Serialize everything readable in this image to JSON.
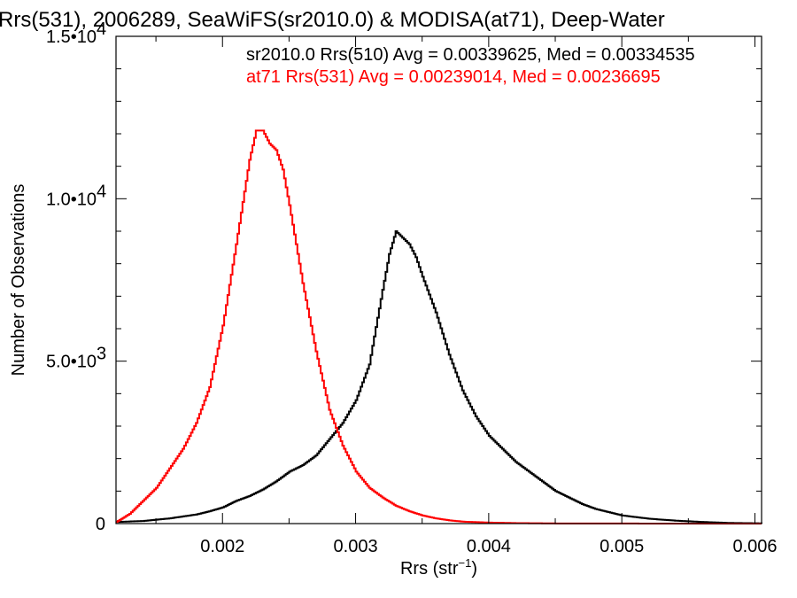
{
  "chart_data": {
    "type": "line",
    "title": "Rrs(531), 2006289, SeaWiFS(sr2010.0) & MODISA(at71), Deep-Water",
    "xlabel": "Rrs (str",
    "xlabel_sup": "−1",
    "xlabel_end": ")",
    "ylabel": "Number of Observations",
    "xlim": [
      0.0012,
      0.00605
    ],
    "ylim": [
      0,
      15000
    ],
    "x_ticks": [
      {
        "value": 0.002,
        "label": "0.002"
      },
      {
        "value": 0.003,
        "label": "0.003"
      },
      {
        "value": 0.004,
        "label": "0.004"
      },
      {
        "value": 0.005,
        "label": "0.005"
      },
      {
        "value": 0.006,
        "label": "0.006"
      }
    ],
    "y_ticks": [
      {
        "value": 0,
        "label": "0",
        "exp": ""
      },
      {
        "value": 5000,
        "label": "5.0•10",
        "exp": "3"
      },
      {
        "value": 10000,
        "label": "1.0•10",
        "exp": "4"
      },
      {
        "value": 15000,
        "label": "1.5•10",
        "exp": "4"
      }
    ],
    "annotations": [
      {
        "text": "sr2010.0 Rrs(510) Avg = 0.00339625, Med = 0.00334535",
        "color": "#000000"
      },
      {
        "text": "at71 Rrs(531) Avg = 0.00239014, Med = 0.00236695",
        "color": "#ff0000"
      }
    ],
    "series": [
      {
        "color": "#000000",
        "style": "step",
        "x": [
          0.0012,
          0.0014,
          0.0016,
          0.0018,
          0.0019,
          0.002,
          0.0021,
          0.0022,
          0.0023,
          0.0024,
          0.0025,
          0.0026,
          0.0027,
          0.0028,
          0.0029,
          0.003,
          0.0031,
          0.0032,
          0.00325,
          0.0033,
          0.00335,
          0.0034,
          0.00345,
          0.0035,
          0.0036,
          0.0037,
          0.0038,
          0.0039,
          0.004,
          0.0041,
          0.0042,
          0.0043,
          0.0044,
          0.0045,
          0.0046,
          0.0047,
          0.0048,
          0.005,
          0.0052,
          0.0054,
          0.0056,
          0.0058,
          0.006,
          0.00605
        ],
        "y": [
          50,
          80,
          160,
          280,
          380,
          500,
          700,
          850,
          1050,
          1300,
          1600,
          1800,
          2100,
          2600,
          3100,
          3800,
          4900,
          7200,
          8300,
          9000,
          8800,
          8600,
          8200,
          7600,
          6500,
          5200,
          4100,
          3300,
          2700,
          2300,
          1900,
          1600,
          1300,
          1000,
          800,
          600,
          450,
          250,
          150,
          90,
          50,
          20,
          10,
          5
        ]
      },
      {
        "color": "#ff0000",
        "style": "step",
        "x": [
          0.0012,
          0.0013,
          0.0014,
          0.0015,
          0.0016,
          0.0017,
          0.0018,
          0.0019,
          0.002,
          0.0021,
          0.0022,
          0.00225,
          0.0023,
          0.00235,
          0.0024,
          0.00245,
          0.0025,
          0.0026,
          0.0027,
          0.0028,
          0.0029,
          0.003,
          0.0031,
          0.0032,
          0.0033,
          0.0034,
          0.0035,
          0.0036,
          0.0037,
          0.0038,
          0.004,
          0.0042,
          0.0045,
          0.005,
          0.006,
          0.00605
        ],
        "y": [
          50,
          300,
          700,
          1100,
          1700,
          2300,
          3100,
          4200,
          6100,
          8600,
          11200,
          12100,
          12100,
          11700,
          11500,
          10900,
          9800,
          7400,
          5300,
          3500,
          2400,
          1600,
          1100,
          800,
          550,
          380,
          250,
          160,
          100,
          60,
          30,
          15,
          5,
          2,
          0,
          0
        ]
      }
    ]
  }
}
